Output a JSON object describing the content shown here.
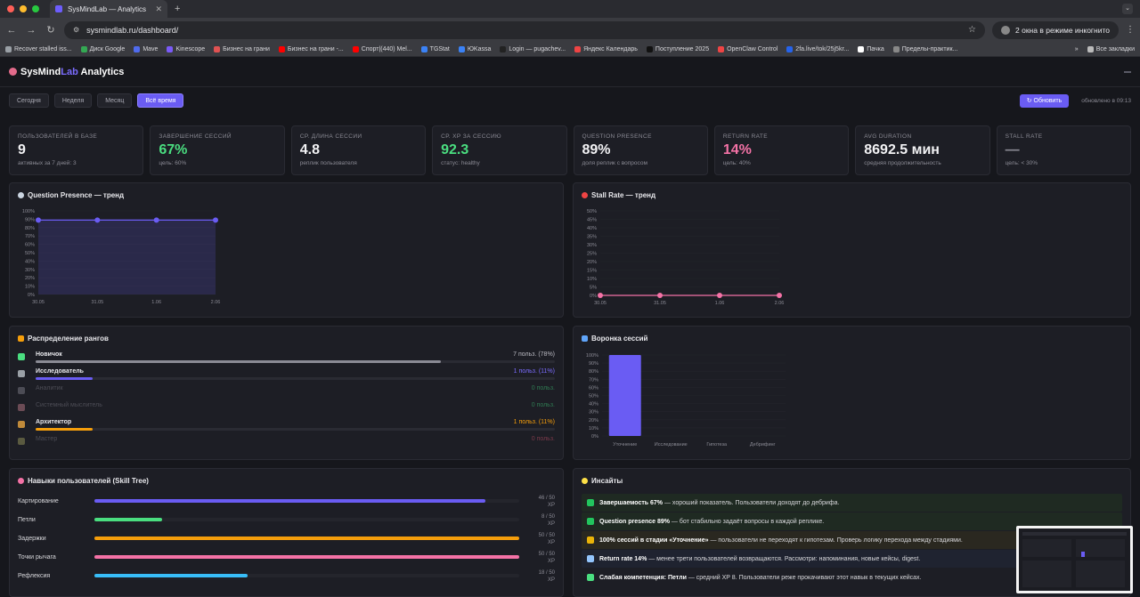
{
  "browser": {
    "tab_title": "SysMindLab — Analytics",
    "url": "sysmindlab.ru/dashboard/",
    "incognito_label": "2 окна в режиме инкогнито",
    "bookmarks": [
      {
        "label": "Recover stalled iss...",
        "color": "#9aa0a6"
      },
      {
        "label": "Диск Google",
        "color": "#34a853"
      },
      {
        "label": "Mave",
        "color": "#4f6bed"
      },
      {
        "label": "Kinescope",
        "color": "#7a5af8"
      },
      {
        "label": "Бизнес на грани",
        "color": "#e05252"
      },
      {
        "label": "Бизнес на грани -...",
        "color": "#ff0000"
      },
      {
        "label": "Спорт|(440) Mel...",
        "color": "#ff0000"
      },
      {
        "label": "TGStat",
        "color": "#3b82f6"
      },
      {
        "label": "ЮKassa",
        "color": "#3b82f6"
      },
      {
        "label": "Login — pugachev...",
        "color": "#222222"
      },
      {
        "label": "Яндекс Календарь",
        "color": "#ef4444"
      },
      {
        "label": "Поступление 2025",
        "color": "#111111"
      },
      {
        "label": "OpenClaw Control",
        "color": "#ef4444"
      },
      {
        "label": "2fa.live/tok/25j5kr...",
        "color": "#2563eb"
      },
      {
        "label": "Пачка",
        "color": "#ffffff"
      },
      {
        "label": "Пределы-практик...",
        "color": "#888888"
      }
    ],
    "bookmarks_more": "»",
    "all_bookmarks": "Все закладки"
  },
  "app": {
    "brand_main": "SysMind",
    "brand_accent": "Lab",
    "brand_tail": "Analytics",
    "filters": [
      "Сегодня",
      "Неделя",
      "Месяц",
      "Всё время"
    ],
    "active_filter": 3,
    "refresh_label": "↻ Обновить",
    "updated_label": "обновлено в 09:13"
  },
  "kpis": [
    {
      "label": "Пользователей в базе",
      "value": "9",
      "sub": "активных за 7 дней: 3",
      "tone": "white"
    },
    {
      "label": "Завершение сессий",
      "value": "67%",
      "sub": "цель: 60%",
      "tone": "green"
    },
    {
      "label": "Ср. длина сессии",
      "value": "4.8",
      "sub": "реплик пользователя",
      "tone": "white"
    },
    {
      "label": "Ср. XP за сессию",
      "value": "92.3",
      "sub": "статус: healthy",
      "tone": "green"
    },
    {
      "label": "Question presence",
      "value": "89%",
      "sub": "доля реплик с вопросом",
      "tone": "white"
    },
    {
      "label": "Return rate",
      "value": "14%",
      "sub": "цель: 40%",
      "tone": "pink"
    },
    {
      "label": "Avg duration",
      "value": "8692.5 мин",
      "sub": "средняя продолжительность",
      "tone": "white"
    },
    {
      "label": "Stall rate",
      "value": "—",
      "sub": "цель: < 30%",
      "tone": "grey"
    }
  ],
  "charts": {
    "qp_title": "Question Presence — тренд",
    "stall_title": "Stall Rate — тренд",
    "funnel_title": "Воронка сессий"
  },
  "chart_data": [
    {
      "type": "area",
      "title": "Question Presence — тренд",
      "x": [
        "30.05",
        "31.05",
        "1.06",
        "2.06"
      ],
      "values": [
        89,
        89,
        89,
        89
      ],
      "ylim": [
        0,
        100
      ],
      "yticks": [
        "0%",
        "10%",
        "20%",
        "30%",
        "40%",
        "50%",
        "60%",
        "70%",
        "80%",
        "90%",
        "100%"
      ],
      "color": "#6a5cf3"
    },
    {
      "type": "line",
      "title": "Stall Rate — тренд",
      "x": [
        "30.05",
        "31.05",
        "1.06",
        "2.06"
      ],
      "values": [
        0,
        0,
        0,
        0
      ],
      "ylim": [
        0,
        50
      ],
      "yticks": [
        "0%",
        "5%",
        "10%",
        "15%",
        "20%",
        "25%",
        "30%",
        "35%",
        "40%",
        "45%",
        "50%"
      ],
      "color": "#f472a6"
    },
    {
      "type": "bar",
      "title": "Воронка сессий",
      "categories": [
        "Уточнение",
        "Исследование",
        "Гипотеза",
        "Дебрифинг"
      ],
      "values": [
        100,
        0,
        0,
        0
      ],
      "ylim": [
        0,
        100
      ],
      "yticks": [
        "0%",
        "10%",
        "20%",
        "30%",
        "40%",
        "50%",
        "60%",
        "70%",
        "80%",
        "90%",
        "100%"
      ],
      "color": "#6a5cf3"
    }
  ],
  "ranks": {
    "title": "Распределение рангов",
    "items": [
      {
        "name": "Новичок",
        "count": "7 польз. (78%)",
        "fraction": 0.78,
        "color": "#8b8b95",
        "countColor": "#b8b8c0",
        "dim": false,
        "icon": "#4ade80"
      },
      {
        "name": "Исследователь",
        "count": "1 польз. (11%)",
        "fraction": 0.11,
        "color": "#6a5cf3",
        "countColor": "#7b6cff",
        "dim": false,
        "icon": "#9aa0a6"
      },
      {
        "name": "Аналитик",
        "count": "0 польз.",
        "fraction": 0,
        "color": "#6a5cf3",
        "countColor": "#2f7a52",
        "dim": true,
        "icon": "#4c4c55"
      },
      {
        "name": "Системный мыслитель",
        "count": "0 польз.",
        "fraction": 0,
        "color": "#6a5cf3",
        "countColor": "#2f7a52",
        "dim": true,
        "icon": "#6b4b55"
      },
      {
        "name": "Архитектор",
        "count": "1 польз. (11%)",
        "fraction": 0.11,
        "color": "#f59e0b",
        "countColor": "#f59e0b",
        "dim": false,
        "icon": "#c08a3a"
      },
      {
        "name": "Мастер",
        "count": "0 польз.",
        "fraction": 0,
        "color": "#6a5cf3",
        "countColor": "#7a3a4a",
        "dim": true,
        "icon": "#5a5a40"
      }
    ]
  },
  "skills": {
    "title": "Навыки пользователей (Skill Tree)",
    "items": [
      {
        "name": "Картирование",
        "value": "46 / 50",
        "unit": "XP",
        "fraction": 0.92,
        "color": "#6a5cf3"
      },
      {
        "name": "Петли",
        "value": "8 / 50",
        "unit": "XP",
        "fraction": 0.16,
        "color": "#4ade80"
      },
      {
        "name": "Задержки",
        "value": "50 / 50",
        "unit": "XP",
        "fraction": 1.0,
        "color": "#f59e0b"
      },
      {
        "name": "Точки рычага",
        "value": "50 / 50",
        "unit": "XP",
        "fraction": 1.0,
        "color": "#f472a6"
      },
      {
        "name": "Рефлексия",
        "value": "18 / 50",
        "unit": "XP",
        "fraction": 0.36,
        "color": "#38bdf8"
      }
    ]
  },
  "insights": {
    "title": "Инсайты",
    "items": [
      {
        "bold": "Завершаемость 67%",
        "text": " — хороший показатель. Пользователи доходят до дебрифа.",
        "tone": "green",
        "icon": "#22c55e"
      },
      {
        "bold": "Question presence 89%",
        "text": " — бот стабильно задаёт вопросы в каждой реплике.",
        "tone": "green",
        "icon": "#22c55e"
      },
      {
        "bold": "100% сессий в стадии «Уточнение»",
        "text": " — пользователи не переходят к гипотезам. Проверь логику перехода между стадиями.",
        "tone": "yellow",
        "icon": "#eab308"
      },
      {
        "bold": "Return rate 14%",
        "text": " — менее трети пользователей возвращаются. Рассмотри: напоминания, новые кейсы, digest.",
        "tone": "blue",
        "icon": "#93c5fd"
      },
      {
        "bold": "Слабая компетенция: Петли",
        "text": " — средний XP 8. Пользователи реже прокачивают этот навык в текущих кейсах.",
        "tone": "none",
        "icon": "#4ade80"
      }
    ]
  }
}
